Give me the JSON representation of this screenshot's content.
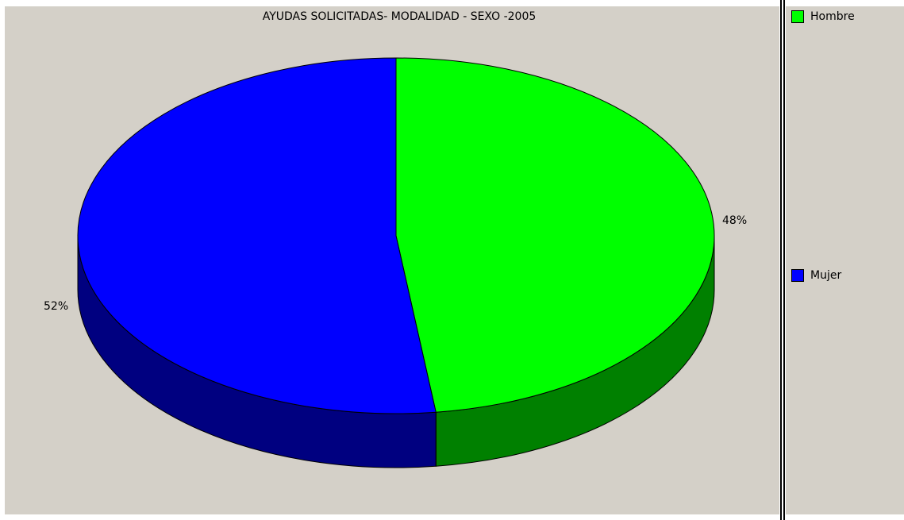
{
  "chart_data": {
    "type": "pie",
    "title": "AYUDAS SOLICITADAS- MODALIDAD - SEXO -2005",
    "style": "3d",
    "legend_position": "right",
    "slices": [
      {
        "label": "Hombre",
        "percent": 48,
        "value_label": "48%",
        "color": "#00ff00",
        "side_color": "#008000"
      },
      {
        "label": "Mujer",
        "percent": 52,
        "value_label": "52%",
        "color": "#0000ff",
        "side_color": "#000080"
      }
    ]
  }
}
